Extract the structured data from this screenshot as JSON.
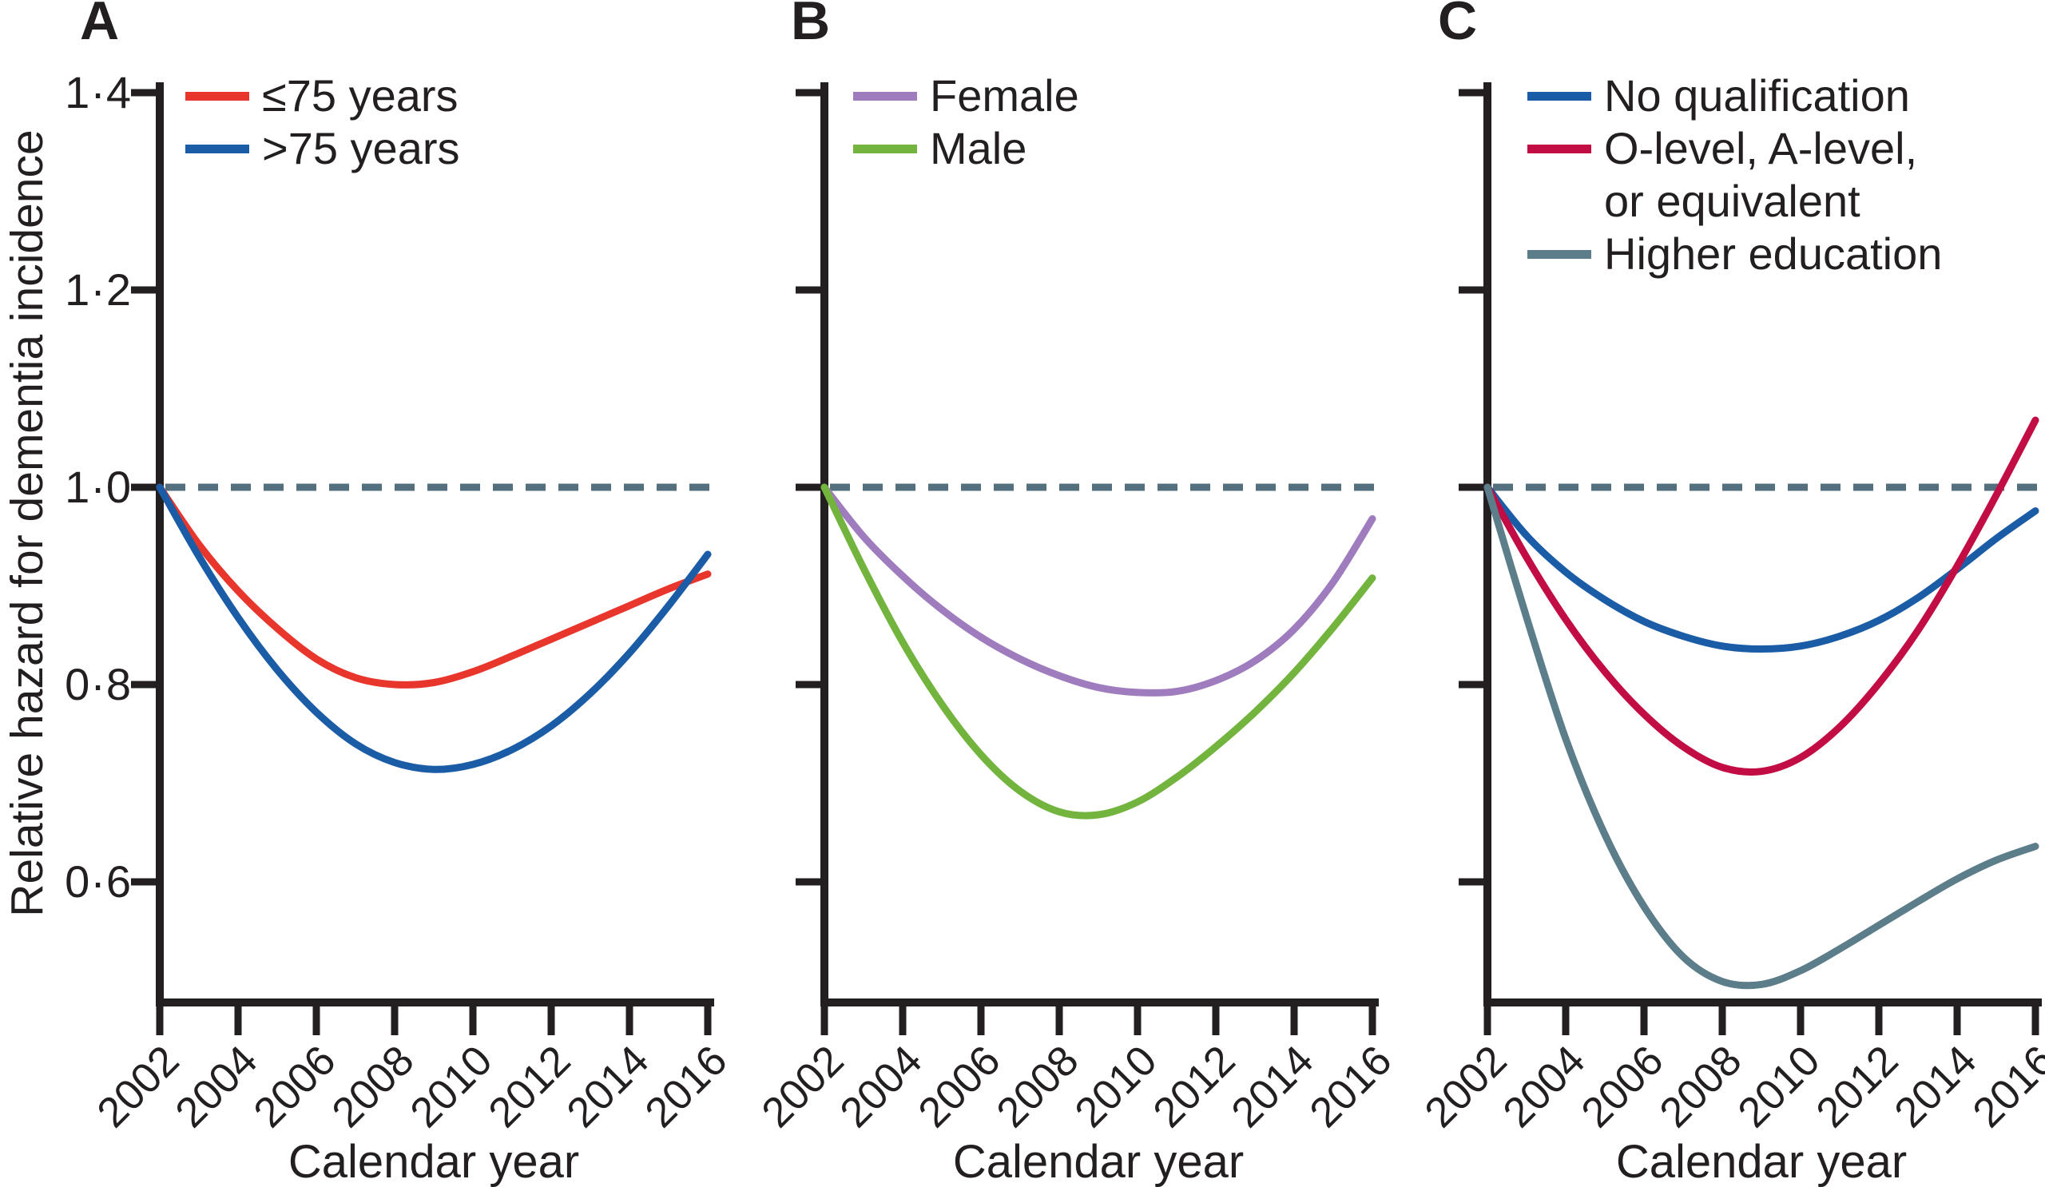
{
  "figure": {
    "y_axis_title": "Relative hazard for dementia incidence",
    "x_axis_title": "Calendar year",
    "y_tick_labels": [
      "1·4",
      "1·2",
      "1·0",
      "0·8",
      "0·6"
    ],
    "y_tick_values": [
      1.4,
      1.2,
      1.0,
      0.8,
      0.6
    ],
    "x_tick_labels": [
      "2002",
      "2004",
      "2006",
      "2008",
      "2010",
      "2012",
      "2014",
      "2016"
    ],
    "x_tick_years": [
      2002,
      2004,
      2006,
      2008,
      2010,
      2012,
      2014,
      2016
    ],
    "colors": {
      "axis": "#231f20",
      "text": "#231f20",
      "reference_dashed_line": "#54707e"
    }
  },
  "chart_data": [
    {
      "type": "line",
      "panel_label": "A",
      "xlabel": "Calendar year",
      "ylabel": "Relative hazard for dementia incidence",
      "xlim": [
        2002,
        2016
      ],
      "ylim": [
        0.47,
        1.41
      ],
      "reference_line_y": 1.0,
      "legend_position": "top-left",
      "grid": false,
      "x": [
        2002,
        2003,
        2004,
        2005,
        2006,
        2007,
        2008,
        2009,
        2010,
        2011,
        2012,
        2013,
        2014,
        2015,
        2016
      ],
      "series": [
        {
          "name": "≤75 years",
          "legend_lines": [
            "≤75 years"
          ],
          "color": "#e8362d",
          "values": [
            1.0,
            0.942,
            0.895,
            0.857,
            0.826,
            0.807,
            0.8,
            0.802,
            0.813,
            0.829,
            0.846,
            0.863,
            0.88,
            0.897,
            0.912
          ]
        },
        {
          "name": ">75 years",
          "legend_lines": [
            ">75 years"
          ],
          "color": "#1b5ca6",
          "values": [
            1.0,
            0.93,
            0.868,
            0.815,
            0.772,
            0.74,
            0.721,
            0.714,
            0.719,
            0.734,
            0.758,
            0.791,
            0.832,
            0.88,
            0.932
          ]
        }
      ]
    },
    {
      "type": "line",
      "panel_label": "B",
      "xlabel": "Calendar year",
      "ylabel": "",
      "xlim": [
        2002,
        2016
      ],
      "ylim": [
        0.47,
        1.41
      ],
      "reference_line_y": 1.0,
      "legend_position": "top-left",
      "grid": false,
      "x": [
        2002,
        2003,
        2004,
        2005,
        2006,
        2007,
        2008,
        2009,
        2010,
        2011,
        2012,
        2013,
        2014,
        2015,
        2016
      ],
      "series": [
        {
          "name": "Female",
          "legend_lines": [
            "Female"
          ],
          "color": "#9f7cbd",
          "values": [
            1.0,
            0.95,
            0.91,
            0.876,
            0.848,
            0.826,
            0.809,
            0.797,
            0.792,
            0.793,
            0.804,
            0.824,
            0.856,
            0.904,
            0.968
          ]
        },
        {
          "name": "Male",
          "legend_lines": [
            "Male"
          ],
          "color": "#72b43e",
          "values": [
            1.0,
            0.918,
            0.843,
            0.78,
            0.729,
            0.692,
            0.671,
            0.668,
            0.681,
            0.706,
            0.737,
            0.772,
            0.812,
            0.858,
            0.908
          ]
        }
      ]
    },
    {
      "type": "line",
      "panel_label": "C",
      "xlabel": "Calendar year",
      "ylabel": "",
      "xlim": [
        2002,
        2016
      ],
      "ylim": [
        0.47,
        1.41
      ],
      "reference_line_y": 1.0,
      "legend_position": "top-left",
      "grid": false,
      "x": [
        2002,
        2003,
        2004,
        2005,
        2006,
        2007,
        2008,
        2009,
        2010,
        2011,
        2012,
        2013,
        2014,
        2015,
        2016
      ],
      "series": [
        {
          "name": "No qualification",
          "legend_lines": [
            "No qualification"
          ],
          "color": "#1b5ca6",
          "values": [
            1.0,
            0.951,
            0.914,
            0.886,
            0.864,
            0.849,
            0.839,
            0.836,
            0.839,
            0.849,
            0.865,
            0.888,
            0.917,
            0.948,
            0.976
          ]
        },
        {
          "name": "O-level, A-level, or equivalent",
          "legend_lines": [
            "O-level, A-level,",
            "or equivalent"
          ],
          "color": "#c20c44",
          "values": [
            1.0,
            0.929,
            0.866,
            0.813,
            0.77,
            0.737,
            0.716,
            0.712,
            0.726,
            0.757,
            0.801,
            0.855,
            0.92,
            0.992,
            1.068
          ]
        },
        {
          "name": "Higher education",
          "legend_lines": [
            "Higher education"
          ],
          "color": "#5c7d8a",
          "values": [
            1.0,
            0.868,
            0.745,
            0.648,
            0.575,
            0.524,
            0.499,
            0.496,
            0.51,
            0.532,
            0.556,
            0.58,
            0.603,
            0.622,
            0.636
          ]
        }
      ]
    }
  ]
}
